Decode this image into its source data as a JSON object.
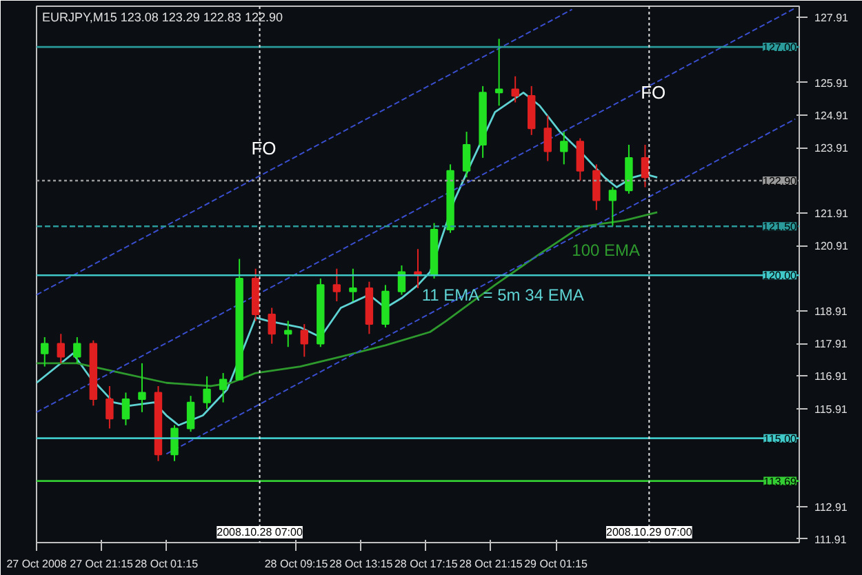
{
  "chart_data": {
    "type": "candlestick",
    "title": "EURJPY,M15  123.08 123.29 122.83 122.90",
    "x": [
      "2008-10-27T17:45",
      "2008-10-27T18:45",
      "2008-10-27T19:45",
      "2008-10-27T20:45",
      "2008-10-27T21:45",
      "2008-10-27T22:45",
      "2008-10-27T23:45",
      "2008-10-28T00:45",
      "2008-10-28T01:45",
      "2008-10-28T02:45",
      "2008-10-28T03:45",
      "2008-10-28T04:45",
      "2008-10-28T05:45",
      "2008-10-28T06:45",
      "2008-10-28T07:45",
      "2008-10-28T08:45",
      "2008-10-28T09:45",
      "2008-10-28T10:45",
      "2008-10-28T11:45",
      "2008-10-28T12:45",
      "2008-10-28T13:45",
      "2008-10-28T14:45",
      "2008-10-28T15:45",
      "2008-10-28T16:45",
      "2008-10-28T17:45",
      "2008-10-28T18:45",
      "2008-10-28T19:45",
      "2008-10-28T20:45",
      "2008-10-28T21:45",
      "2008-10-28T22:45",
      "2008-10-28T23:45",
      "2008-10-29T00:45",
      "2008-10-29T01:45",
      "2008-10-29T02:45",
      "2008-10-29T03:45",
      "2008-10-29T04:45",
      "2008-10-29T05:45",
      "2008-10-29T06:45"
    ],
    "ohlc": [
      [
        117.6,
        118.1,
        117.2,
        117.9
      ],
      [
        117.9,
        118.2,
        117.3,
        117.5
      ],
      [
        117.5,
        118.1,
        117.3,
        117.9
      ],
      [
        117.9,
        118.0,
        116.0,
        116.2
      ],
      [
        116.2,
        116.6,
        115.3,
        115.6
      ],
      [
        115.6,
        116.4,
        115.4,
        116.2
      ],
      [
        116.2,
        117.3,
        115.8,
        116.4
      ],
      [
        116.4,
        116.6,
        114.3,
        114.5
      ],
      [
        114.5,
        115.4,
        114.3,
        115.3
      ],
      [
        115.3,
        116.3,
        115.2,
        116.1
      ],
      [
        116.1,
        116.9,
        115.9,
        116.5
      ],
      [
        116.5,
        117.0,
        116.1,
        116.8
      ],
      [
        116.8,
        120.5,
        116.8,
        119.9
      ],
      [
        119.9,
        120.2,
        118.6,
        118.8
      ],
      [
        118.8,
        119.0,
        117.9,
        118.2
      ],
      [
        118.2,
        118.6,
        117.8,
        118.3
      ],
      [
        118.3,
        118.5,
        117.5,
        117.9
      ],
      [
        117.9,
        119.9,
        117.8,
        119.7
      ],
      [
        119.7,
        120.2,
        119.2,
        119.5
      ],
      [
        119.5,
        120.2,
        119.2,
        119.6
      ],
      [
        119.6,
        119.8,
        118.2,
        118.5
      ],
      [
        118.5,
        119.7,
        118.4,
        119.5
      ],
      [
        119.5,
        120.3,
        119.4,
        120.1
      ],
      [
        120.1,
        120.8,
        119.6,
        120.0
      ],
      [
        120.0,
        121.6,
        119.9,
        121.4
      ],
      [
        121.4,
        123.4,
        121.3,
        123.2
      ],
      [
        123.2,
        124.4,
        123.0,
        124.0
      ],
      [
        124.0,
        125.8,
        123.6,
        125.6
      ],
      [
        125.6,
        127.25,
        125.2,
        125.7
      ],
      [
        125.7,
        126.1,
        125.3,
        125.5
      ],
      [
        125.5,
        125.8,
        124.3,
        124.5
      ],
      [
        124.5,
        124.9,
        123.5,
        123.8
      ],
      [
        123.8,
        124.4,
        123.4,
        124.1
      ],
      [
        124.1,
        124.2,
        122.9,
        123.2
      ],
      [
        123.2,
        123.4,
        122.0,
        122.3
      ],
      [
        122.3,
        122.7,
        121.5,
        122.6
      ],
      [
        122.6,
        124.0,
        122.5,
        123.6
      ],
      [
        123.6,
        124.0,
        122.7,
        123.0
      ]
    ],
    "colors": [
      "#22e022",
      "#e02020",
      "#22e022",
      "#e02020",
      "#e02020",
      "#22e022",
      "#22e022",
      "#e02020",
      "#22e022",
      "#22e022",
      "#22e022",
      "#22e022",
      "#22e022",
      "#e02020",
      "#e02020",
      "#22e022",
      "#e02020",
      "#22e022",
      "#e02020",
      "#22e022",
      "#e02020",
      "#22e022",
      "#22e022",
      "#e02020",
      "#22e022",
      "#22e022",
      "#22e022",
      "#22e022",
      "#22e022",
      "#e02020",
      "#e02020",
      "#e02020",
      "#22e022",
      "#e02020",
      "#e02020",
      "#22e022",
      "#22e022",
      "#e02020"
    ],
    "series": [
      {
        "type": "line",
        "name": "11 EMA = 5m 34 EMA",
        "color": "#5fd3d3",
        "x": [
          "2008-10-27T17:15",
          "2008-10-27T19:30",
          "2008-10-27T20:30",
          "2008-10-27T22:00",
          "2008-10-27T23:00",
          "2008-10-28T00:30",
          "2008-10-28T01:15",
          "2008-10-28T02:00",
          "2008-10-28T03:30",
          "2008-10-28T05:00",
          "2008-10-28T06:45",
          "2008-10-28T07:30",
          "2008-10-28T09:30",
          "2008-10-28T10:45",
          "2008-10-28T12:00",
          "2008-10-28T13:45",
          "2008-10-28T14:45",
          "2008-10-28T15:45",
          "2008-10-28T16:45",
          "2008-10-28T17:30",
          "2008-10-28T19:00",
          "2008-10-28T20:00",
          "2008-10-28T21:30",
          "2008-10-28T23:15",
          "2008-10-29T00:15",
          "2008-10-29T01:30",
          "2008-10-29T02:45",
          "2008-10-29T04:15",
          "2008-10-29T05:00",
          "2008-10-29T06:00",
          "2008-10-29T06:45",
          "2008-10-29T07:30"
        ],
        "values": [
          116.7,
          117.6,
          116.9,
          116.1,
          116.0,
          116.1,
          115.7,
          115.4,
          115.7,
          116.5,
          118.7,
          118.6,
          118.4,
          118.1,
          119.0,
          119.4,
          119.0,
          119.3,
          119.7,
          120.1,
          122.3,
          123.4,
          125.0,
          125.6,
          125.2,
          124.4,
          123.8,
          123.0,
          122.7,
          123.0,
          123.1,
          123.0
        ]
      },
      {
        "type": "line",
        "name": "100 EMA",
        "color": "#2e9a2e",
        "x": [
          "2008-10-27T17:15",
          "2008-10-27T19:45",
          "2008-10-27T22:30",
          "2008-10-28T01:15",
          "2008-10-28T04:00",
          "2008-10-28T05:15",
          "2008-10-28T06:45",
          "2008-10-28T09:30",
          "2008-10-28T12:00",
          "2008-10-28T14:45",
          "2008-10-28T17:30",
          "2008-10-28T18:30",
          "2008-10-28T21:30",
          "2008-10-29T00:15",
          "2008-10-29T02:45",
          "2008-10-29T05:30",
          "2008-10-29T07:30"
        ],
        "values": [
          117.3,
          117.3,
          117.0,
          116.7,
          116.6,
          116.7,
          117.0,
          117.2,
          117.5,
          117.85,
          118.26,
          118.6,
          119.7,
          120.65,
          121.48,
          121.68,
          121.93
        ]
      },
      {
        "type": "line",
        "color": "#3a4fd0",
        "line_style": "dashed",
        "x": [
          "2008-10-27T17:15",
          "2008-10-29T02:15"
        ],
        "values": [
          119.4,
          128.15
        ]
      },
      {
        "type": "line",
        "color": "#3a4fd0",
        "line_style": "dashed",
        "x": [
          "2008-10-27T17:15",
          "2008-10-29T16:00"
        ],
        "values": [
          115.8,
          128.19
        ]
      },
      {
        "type": "line",
        "color": "#3a4fd0",
        "line_style": "dashed",
        "x": [
          "2008-10-28T01:15",
          "2008-10-29T16:00"
        ],
        "values": [
          114.52,
          124.79
        ]
      }
    ],
    "xlim": [
      "2008-10-27T17:15",
      "2008-10-29T16:15"
    ],
    "xticks": [
      {
        "value": "2008-10-27T17:15",
        "label": "27 Oct 2008"
      },
      {
        "value": "2008-10-27T21:15",
        "label": "27 Oct 21:15"
      },
      {
        "value": "2008-10-28T01:15",
        "label": "28 Oct 01:15"
      },
      {
        "value": "2008-10-28T09:15",
        "label": "28 Oct 09:15"
      },
      {
        "value": "2008-10-28T13:15",
        "label": "28 Oct 13:15"
      },
      {
        "value": "2008-10-28T17:15",
        "label": "28 Oct 17:15"
      },
      {
        "value": "2008-10-28T21:15",
        "label": "28 Oct 21:15"
      },
      {
        "value": "2008-10-29T01:15",
        "label": "29 Oct 01:15"
      }
    ],
    "ylim": [
      111.8,
      128.25
    ],
    "yticks": [
      111.91,
      112.91,
      115.91,
      116.91,
      117.91,
      118.91,
      120.91,
      121.91,
      123.91,
      124.91,
      125.91,
      127.91
    ],
    "ref_lines": [
      {
        "axis": "y",
        "value": 127.0,
        "label": "127.00",
        "color": "#2a9a9a"
      },
      {
        "axis": "y",
        "value": 122.9,
        "label": "122.90",
        "color": "#9a9a9a",
        "line_style": "dotted"
      },
      {
        "axis": "y",
        "value": 121.5,
        "label": "121.50",
        "color": "#2a9a9a",
        "line_style": "dashed"
      },
      {
        "axis": "y",
        "value": 120.0,
        "label": "120.00",
        "color": "#40c8c8"
      },
      {
        "axis": "y",
        "value": 115.0,
        "label": "115.00",
        "color": "#40c8c8"
      },
      {
        "axis": "y",
        "value": 113.69,
        "label": "113.69",
        "color": "#33cc33"
      },
      {
        "axis": "x",
        "value": "2008-10-28T07:00",
        "label": "2008.10.28 07:00",
        "color": "#e0e0e0",
        "line_style": "dotted"
      },
      {
        "axis": "x",
        "value": "2008-10-29T07:00",
        "label": "2008.10.29 07:00",
        "color": "#e0e0e0",
        "line_style": "dotted"
      }
    ],
    "annotations": [
      {
        "text": "FO",
        "x": "2008-10-28T07:15",
        "y": 123.9
      },
      {
        "text": "FO",
        "x": "2008-10-29T07:15",
        "y": 125.6
      }
    ],
    "grid": false
  }
}
